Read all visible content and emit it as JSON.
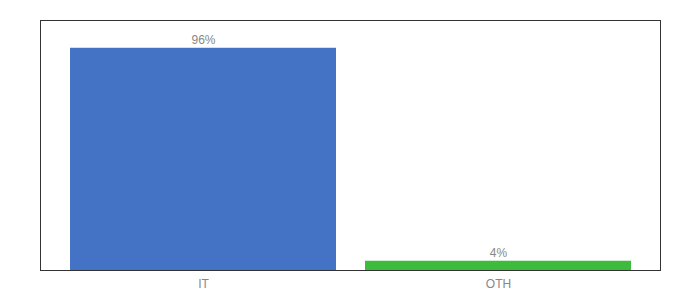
{
  "chart_data": {
    "type": "bar",
    "categories": [
      "IT",
      "OTH"
    ],
    "values": [
      96,
      4
    ],
    "value_labels": [
      "96%",
      "4%"
    ],
    "colors": [
      "#4472c4",
      "#3dbb3d"
    ],
    "ylim": [
      0,
      108
    ],
    "data_labels": true,
    "tick_labels": "x"
  }
}
